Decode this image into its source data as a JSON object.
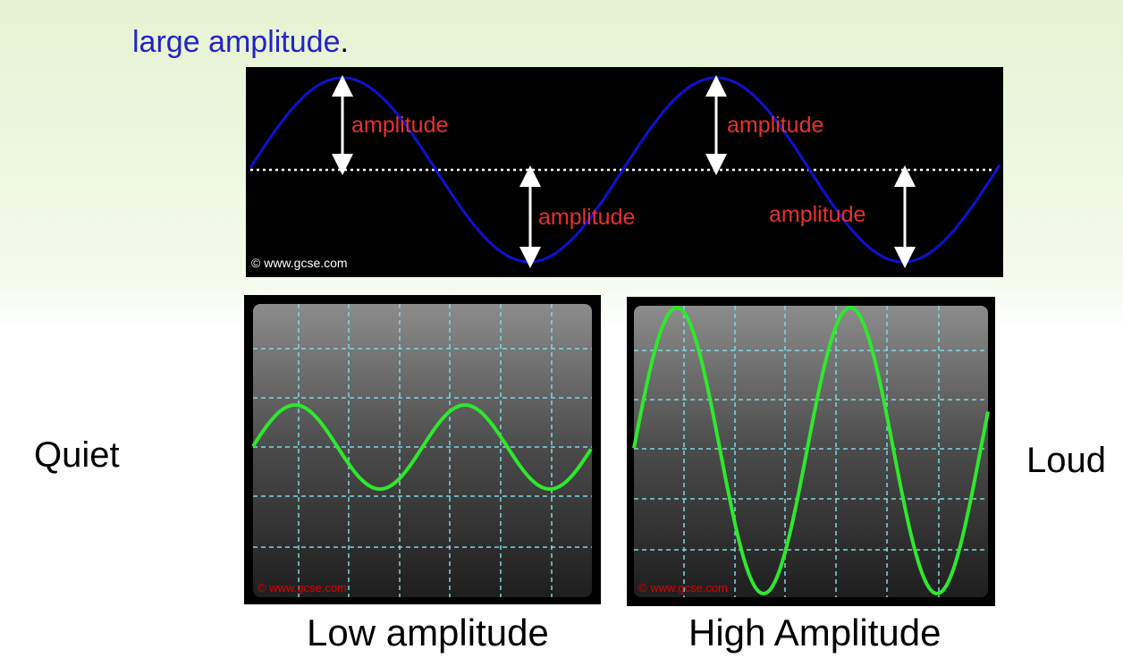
{
  "heading": {
    "text": "large amplitude",
    "punctuation": "."
  },
  "top_diagram": {
    "labels": [
      "amplitude",
      "amplitude",
      "amplitude",
      "amplitude"
    ],
    "credit": "© www.gcse.com"
  },
  "side_labels": {
    "left": "Quiet",
    "right": "Loud"
  },
  "scopes": [
    {
      "caption": "Low amplitude",
      "credit": "© www.gcse.com"
    },
    {
      "caption": "High Amplitude",
      "credit": "© www.gcse.com"
    }
  ]
}
